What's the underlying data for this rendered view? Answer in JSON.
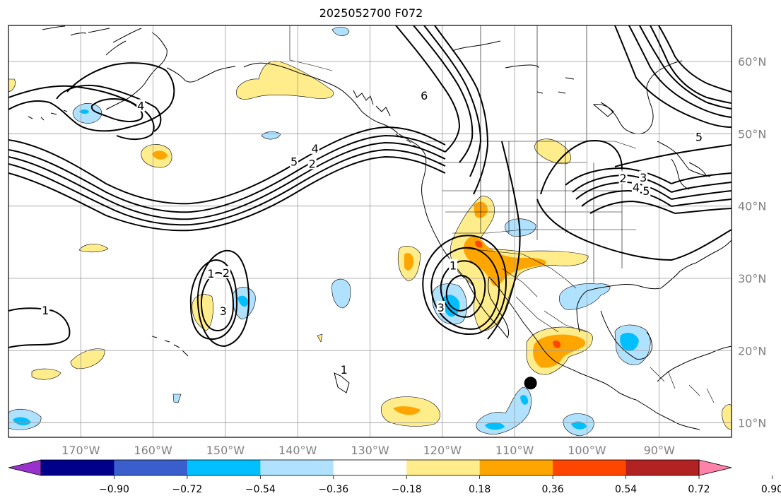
{
  "title": "2025052700 F072",
  "map": {
    "lon_range": [
      -180,
      -80
    ],
    "lat_range": [
      8,
      65
    ],
    "grid": true,
    "lon_ticks": [
      {
        "lon": -170,
        "label": "170°W"
      },
      {
        "lon": -160,
        "label": "160°W"
      },
      {
        "lon": -150,
        "label": "150°W"
      },
      {
        "lon": -140,
        "label": "140°W"
      },
      {
        "lon": -130,
        "label": "130°W"
      },
      {
        "lon": -120,
        "label": "120°W"
      },
      {
        "lon": -110,
        "label": "110°W"
      },
      {
        "lon": -100,
        "label": "100°W"
      },
      {
        "lon": -90,
        "label": "90°W"
      }
    ],
    "lat_ticks": [
      {
        "lat": 10,
        "label": "10°N"
      },
      {
        "lat": 20,
        "label": "20°N"
      },
      {
        "lat": 30,
        "label": "30°N"
      },
      {
        "lat": 40,
        "label": "40°N"
      },
      {
        "lat": 50,
        "label": "50°N"
      },
      {
        "lat": 60,
        "label": "60°N"
      }
    ],
    "marker": {
      "lon": -107.8,
      "lat": 15.5,
      "color": "#000000"
    }
  },
  "colorbar": {
    "colors": [
      "#9932cc",
      "#00008b",
      "#3a5fcd",
      "#00bfff",
      "#b0e2ff",
      "#ffffff",
      "#ffec8b",
      "#ffa500",
      "#ff4500",
      "#b22222",
      "#ff82ab"
    ],
    "labels": [
      "−0.90",
      "−0.72",
      "−0.54",
      "−0.36",
      "−0.18",
      "0.18",
      "0.36",
      "0.54",
      "0.72",
      "0.90"
    ]
  },
  "contour_labels": [
    {
      "text": "1",
      "lon": -174.9,
      "lat": 25.6
    },
    {
      "text": "1",
      "lon": -152.0,
      "lat": 30.7
    },
    {
      "text": "2",
      "lon": -149.9,
      "lat": 30.8
    },
    {
      "text": "3",
      "lon": -150.3,
      "lat": 25.5
    },
    {
      "text": "1",
      "lon": -133.6,
      "lat": 17.4
    },
    {
      "text": "3",
      "lon": -120.2,
      "lat": 26.0
    },
    {
      "text": "1",
      "lon": -118.5,
      "lat": 31.8
    },
    {
      "text": "6",
      "lon": -122.5,
      "lat": 55.3
    },
    {
      "text": "5",
      "lon": -140.5,
      "lat": 46.2
    },
    {
      "text": "4",
      "lon": -137.6,
      "lat": 48.0
    },
    {
      "text": "2",
      "lon": -138.0,
      "lat": 45.9
    },
    {
      "text": "4",
      "lon": -161.7,
      "lat": 53.9
    },
    {
      "text": "2",
      "lon": -95.0,
      "lat": 43.9
    },
    {
      "text": "3",
      "lon": -92.2,
      "lat": 44.0
    },
    {
      "text": "4",
      "lon": -93.2,
      "lat": 42.6
    },
    {
      "text": "5",
      "lon": -91.8,
      "lat": 42.1
    },
    {
      "text": "5",
      "lon": -84.5,
      "lat": 49.6
    }
  ],
  "legend_colors": {
    "positive": "#ffec8b",
    "negative": "#b0e2ff",
    "contour": "#000000"
  }
}
